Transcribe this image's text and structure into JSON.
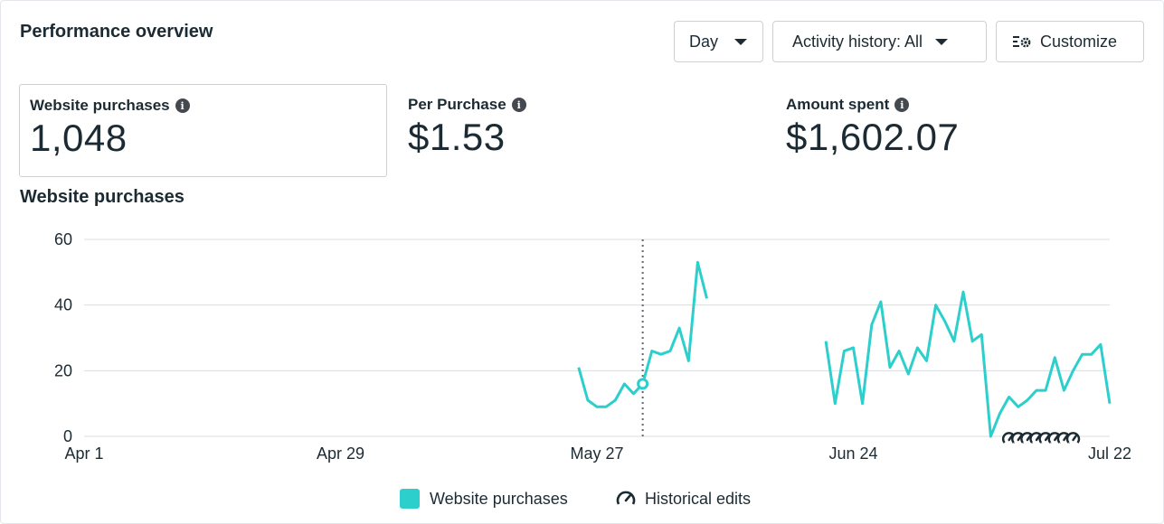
{
  "header": {
    "title": "Performance overview",
    "day_label": "Day",
    "activity_label": "Activity history: All",
    "customize_label": "Customize"
  },
  "metrics": [
    {
      "label": "Website purchases",
      "value": "1,048"
    },
    {
      "label": "Per Purchase",
      "value": "$1.53"
    },
    {
      "label": "Amount spent",
      "value": "$1,602.07"
    }
  ],
  "chart_title": "Website purchases",
  "legend": {
    "series": "Website purchases",
    "edits": "Historical edits"
  },
  "colors": {
    "series": "#2ccfcb",
    "grid": "#dadde1",
    "text": "#1c2b33"
  },
  "chart_data": {
    "type": "line",
    "title": "Website purchases",
    "xlabel": "",
    "ylabel": "",
    "ylim": [
      0,
      60
    ],
    "yticks": [
      0,
      20,
      40,
      60
    ],
    "xticks": [
      "Apr 1",
      "Apr 29",
      "May 27",
      "Jun 24",
      "Jul 22"
    ],
    "x_start": "Apr 1",
    "x_end": "Jul 22",
    "series": [
      {
        "name": "Website purchases",
        "segments": [
          {
            "start": "May 25",
            "values": [
              21,
              11,
              9,
              9,
              11,
              16,
              13,
              16,
              26,
              25,
              26,
              33,
              23,
              53,
              42
            ]
          },
          {
            "start": "Jun 21",
            "values": [
              29,
              10,
              26,
              27,
              10,
              34,
              41,
              21,
              26,
              19,
              27,
              23,
              40,
              35,
              29,
              44,
              29,
              31,
              0,
              7,
              12,
              9,
              11,
              14,
              14,
              24,
              14,
              20,
              25,
              25,
              28,
              10
            ]
          }
        ]
      }
    ],
    "event_marker": {
      "date": "Jun 1",
      "value": 16
    },
    "historical_edits": [
      "Jul 11",
      "Jul 12",
      "Jul 13",
      "Jul 14",
      "Jul 15",
      "Jul 16",
      "Jul 17",
      "Jul 18"
    ],
    "grid": true,
    "legend_position": "bottom"
  }
}
